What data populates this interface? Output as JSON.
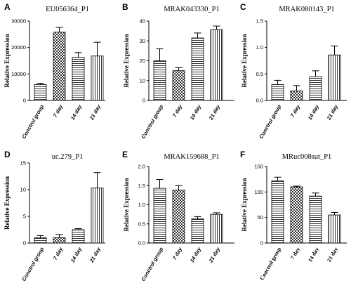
{
  "chart_data": [
    {
      "panel": "A",
      "type": "bar",
      "title": "EU056364_P1",
      "ylabel": "Relative Expression",
      "categories": [
        "Conctrol group",
        "7 day",
        "14 day",
        "21 day"
      ],
      "values": [
        6000,
        25800,
        16300,
        16800
      ],
      "errors": [
        500,
        1800,
        1800,
        5200
      ],
      "ylim": [
        0,
        30000
      ],
      "yticks": [
        0,
        10000,
        20000,
        30000
      ]
    },
    {
      "panel": "B",
      "type": "bar",
      "title": "MRAK043330_P1",
      "ylabel": "Relative Expression",
      "categories": [
        "Conctrol group",
        "7 day",
        "14 day",
        "21 day"
      ],
      "values": [
        20,
        15,
        31.5,
        35.7
      ],
      "errors": [
        6,
        1.5,
        2.5,
        1.8
      ],
      "ylim": [
        0,
        40
      ],
      "yticks": [
        0,
        10,
        20,
        30,
        40
      ]
    },
    {
      "panel": "C",
      "type": "bar",
      "title": "MRAK080143_P1",
      "ylabel": "Relative Expression",
      "categories": [
        "Conctrol group",
        "7 day",
        "14 day",
        "21 day"
      ],
      "values": [
        0.3,
        0.18,
        0.45,
        0.86
      ],
      "errors": [
        0.08,
        0.1,
        0.11,
        0.17
      ],
      "ylim": [
        0,
        1.5
      ],
      "yticks": [
        0,
        0.5,
        1.0,
        1.5
      ],
      "ytick_labels": [
        "0.0",
        "0.5",
        "1.0",
        "1.5"
      ]
    },
    {
      "panel": "D",
      "type": "bar",
      "title": "uc.279_P1",
      "ylabel": "Relative Expression",
      "categories": [
        "Conctrol group",
        "7 day",
        "14 day",
        "21 day"
      ],
      "values": [
        1.0,
        1.0,
        2.5,
        10.3
      ],
      "errors": [
        0.4,
        0.6,
        0.2,
        2.9
      ],
      "ylim": [
        0,
        15
      ],
      "yticks": [
        0,
        5,
        10,
        15
      ]
    },
    {
      "panel": "E",
      "type": "bar",
      "title": "MRAK159688_P1",
      "ylabel": "Relative Expression",
      "categories": [
        "Conctrol group",
        "7 day",
        "14 day",
        "21 day"
      ],
      "values": [
        1.43,
        1.38,
        0.63,
        0.75
      ],
      "errors": [
        0.23,
        0.12,
        0.06,
        0.04
      ],
      "ylim": [
        0,
        2.0
      ],
      "yticks": [
        0,
        0.5,
        1.0,
        1.5,
        2.0
      ],
      "ytick_labels": [
        "0.0",
        "0.5",
        "1.0",
        "1.5",
        "2.0"
      ]
    },
    {
      "panel": "F",
      "type": "bar",
      "title": "MRuc008sut_P1",
      "ylabel": "Relative Expression",
      "categories": [
        "Conctrol group",
        "7 day",
        "14 day",
        "21 day"
      ],
      "values": [
        122,
        110,
        92,
        55
      ],
      "errors": [
        7,
        1.5,
        6,
        5
      ],
      "ylim": [
        0,
        150
      ],
      "yticks": [
        0,
        50,
        100,
        150
      ]
    }
  ]
}
